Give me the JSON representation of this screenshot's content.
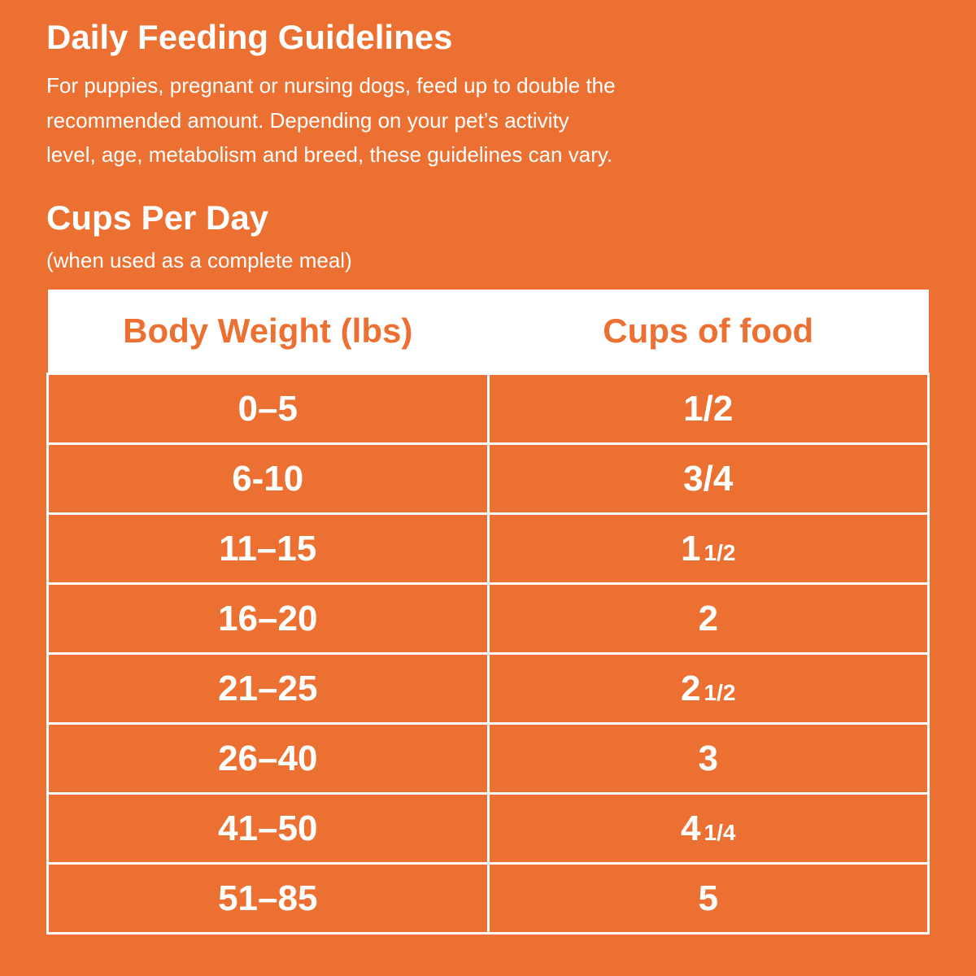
{
  "header": {
    "title": "Daily Feeding Guidelines",
    "description": [
      "For puppies, pregnant or nursing dogs, feed up to double the",
      "recommended amount. Depending on your pet’s activity",
      "level, age, metabolism and breed, these guidelines can vary."
    ]
  },
  "section": {
    "title": "Cups Per Day",
    "subtitle": "(when used as a complete meal)"
  },
  "table": {
    "columns": [
      "Body Weight (lbs)",
      "Cups of food"
    ],
    "rows": [
      [
        "0–5",
        "1/2"
      ],
      [
        "6-10",
        "3/4"
      ],
      [
        "11–15",
        {
          "whole": "1",
          "fraction": "1/2"
        }
      ],
      [
        "16–20",
        "2"
      ],
      [
        "21–25",
        {
          "whole": "2",
          "fraction": "1/2"
        }
      ],
      [
        "26–40",
        "3"
      ],
      [
        "41–50",
        {
          "whole": "4",
          "fraction": "1/4"
        }
      ],
      [
        "51–85",
        "5"
      ]
    ]
  }
}
